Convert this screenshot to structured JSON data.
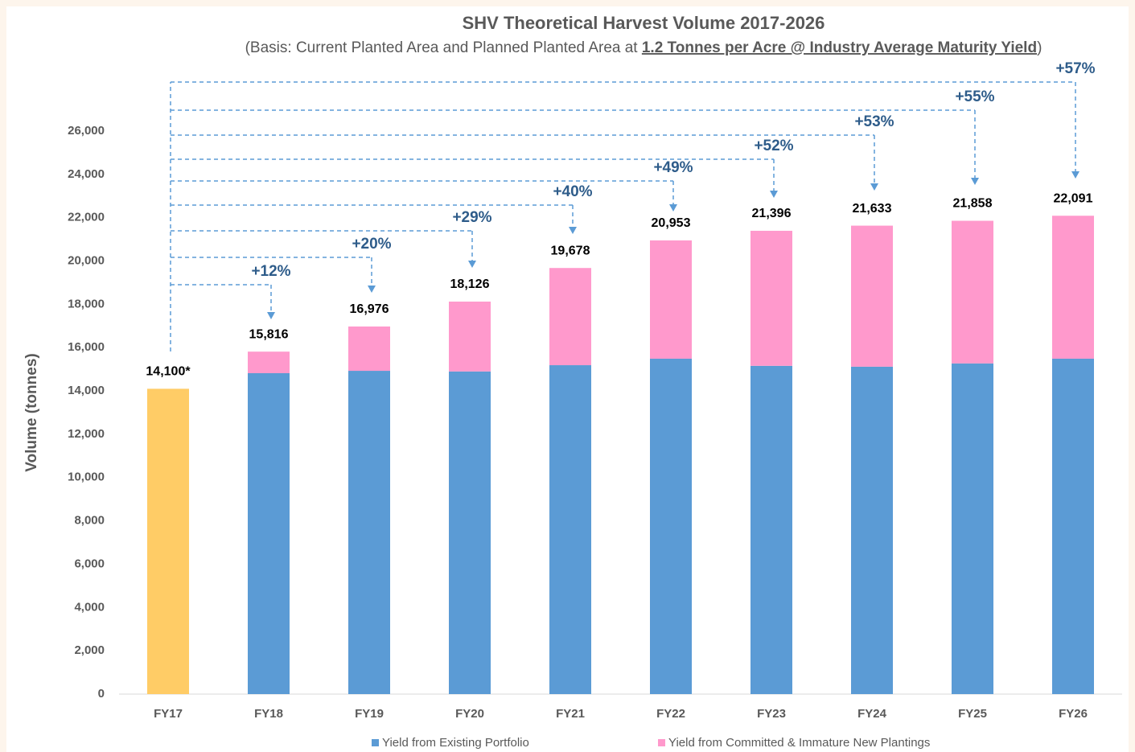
{
  "chart_data": {
    "type": "stacked-bar",
    "title": "SHV Theoretical Harvest Volume 2017-2026",
    "subtitle": [
      "(Basis: Current Planted Area and Planned Planted Area at ",
      "1.2 Tonnes per Acre @ Industry Average Maturity Yield",
      ")"
    ],
    "y_label": "Volume (tonnes)",
    "categories": [
      "FY17",
      "FY18",
      "FY19",
      "FY20",
      "FY21",
      "FY22",
      "FY23",
      "FY24",
      "FY25",
      "FY26"
    ],
    "series": [
      {
        "name": "Yield from Existing Portfolio",
        "color": "#5b9bd5",
        "point_colors": [
          "#ffcc66",
          "#5b9bd5",
          "#5b9bd5",
          "#5b9bd5",
          "#5b9bd5",
          "#5b9bd5",
          "#5b9bd5",
          "#5b9bd5",
          "#5b9bd5",
          "#5b9bd5"
        ],
        "values": [
          14100,
          14820,
          14930,
          14900,
          15190,
          15490,
          15160,
          15120,
          15270,
          15490
        ]
      },
      {
        "name": "Yield from Committed & Immature New Plantings",
        "color": "#ff99cc",
        "values": [
          null,
          996,
          2046,
          3226,
          4488,
          5463,
          6236,
          6513,
          6588,
          6601
        ]
      }
    ],
    "totals": [
      14100,
      15816,
      16976,
      18126,
      19678,
      20953,
      21396,
      21633,
      21858,
      22091
    ],
    "total_labels": [
      "14,100*",
      "15,816",
      "16,976",
      "18,126",
      "19,678",
      "20,953",
      "21,396",
      "21,633",
      "21,858",
      "22,091"
    ],
    "growth": [
      12,
      20,
      29,
      40,
      49,
      52,
      53,
      55,
      57
    ],
    "growth_labels": [
      "+12%",
      "+20%",
      "+29%",
      "+40%",
      "+49%",
      "+52%",
      "+53%",
      "+55%",
      "+57%"
    ],
    "ylim": [
      0,
      26000
    ],
    "yticks": [
      0,
      {
        "value": 2000,
        "label": "2,000"
      },
      {
        "value": 4000,
        "label": "4,000"
      },
      {
        "value": 6000,
        "label": "6,000"
      },
      {
        "value": 8000,
        "label": "8,000"
      },
      {
        "value": 10000,
        "label": "10,000"
      },
      {
        "value": 12000,
        "label": "12,000"
      },
      {
        "value": 14000,
        "label": "14,000"
      },
      {
        "value": 16000,
        "label": "16,000"
      },
      {
        "value": 18000,
        "label": "18,000"
      },
      {
        "value": 20000,
        "label": "20,000"
      },
      {
        "value": 22000,
        "label": "22,000"
      },
      {
        "value": 24000,
        "label": "24,000"
      },
      {
        "value": 26000,
        "label": "26,000"
      }
    ],
    "annotation_color": "#5b9bd5"
  }
}
